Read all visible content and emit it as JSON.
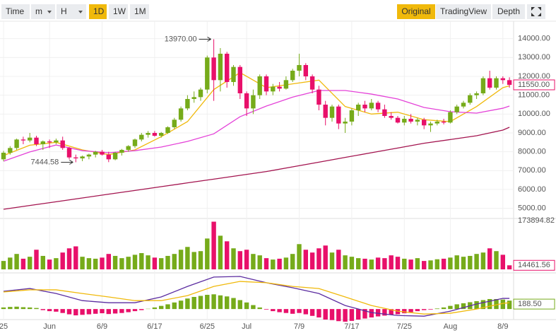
{
  "toolbar": {
    "left": [
      "Time",
      "m",
      "H",
      "1D",
      "1W",
      "1M"
    ],
    "right": [
      "Original",
      "TradingView",
      "Depth"
    ],
    "selected": {
      "left": 3,
      "right": 0
    }
  },
  "chart_data": {
    "type": "candlestick",
    "categories": [
      "25",
      null,
      null,
      null,
      null,
      null,
      null,
      "Jun",
      null,
      null,
      null,
      null,
      null,
      null,
      null,
      "6/9",
      null,
      null,
      null,
      null,
      null,
      null,
      null,
      "6/17",
      null,
      null,
      null,
      null,
      null,
      null,
      null,
      "6/25",
      null,
      null,
      null,
      null,
      null,
      "Jul",
      null,
      null,
      null,
      null,
      null,
      null,
      null,
      "7/9",
      null,
      null,
      null,
      null,
      null,
      null,
      null,
      "7/17",
      null,
      null,
      null,
      null,
      null,
      null,
      null,
      "7/25",
      null,
      null,
      null,
      null,
      null,
      null,
      "Aug",
      null,
      null,
      null,
      null,
      null,
      null,
      null,
      "8/9",
      null
    ],
    "candles": [
      [
        7600,
        8050,
        7500,
        7950
      ],
      [
        7950,
        8300,
        7850,
        8200
      ],
      [
        8200,
        8700,
        8100,
        8650
      ],
      [
        8650,
        8800,
        8400,
        8600
      ],
      [
        8600,
        9000,
        8500,
        8750
      ],
      [
        8750,
        8850,
        8300,
        8400
      ],
      [
        8400,
        8600,
        8100,
        8550
      ],
      [
        8550,
        8650,
        8200,
        8500
      ],
      [
        8500,
        8700,
        8400,
        8600
      ],
      [
        8600,
        8800,
        8100,
        8200
      ],
      [
        8200,
        8250,
        7600,
        7700
      ],
      [
        7700,
        7850,
        7444.58,
        7650
      ],
      [
        7650,
        7800,
        7500,
        7750
      ],
      [
        7750,
        7900,
        7600,
        7850
      ],
      [
        7850,
        8050,
        7700,
        8000
      ],
      [
        8000,
        8100,
        7800,
        7850
      ],
      [
        7850,
        8000,
        7450,
        7600
      ],
      [
        7600,
        8000,
        7550,
        7950
      ],
      [
        7950,
        8150,
        7800,
        8100
      ],
      [
        8100,
        8350,
        8000,
        8300
      ],
      [
        8300,
        8700,
        8200,
        8650
      ],
      [
        8650,
        9000,
        8550,
        8900
      ],
      [
        8900,
        9100,
        8750,
        9000
      ],
      [
        9000,
        9100,
        8800,
        8850
      ],
      [
        8850,
        9050,
        8750,
        9000
      ],
      [
        9000,
        9350,
        8950,
        9300
      ],
      [
        9300,
        9800,
        9200,
        9700
      ],
      [
        9700,
        10400,
        9600,
        10300
      ],
      [
        10300,
        11000,
        10200,
        10800
      ],
      [
        10800,
        11200,
        10600,
        10900
      ],
      [
        10900,
        11400,
        10700,
        11300
      ],
      [
        11300,
        13100,
        11100,
        13000
      ],
      [
        13000,
        13970,
        10700,
        11800
      ],
      [
        11800,
        13500,
        11200,
        13200
      ],
      [
        13200,
        13300,
        11400,
        11700
      ],
      [
        11700,
        12600,
        11500,
        12500
      ],
      [
        12500,
        12600,
        10800,
        11100
      ],
      [
        11100,
        11200,
        9900,
        10300
      ],
      [
        10300,
        11300,
        10000,
        11000
      ],
      [
        11000,
        12100,
        10800,
        12000
      ],
      [
        12000,
        12100,
        11000,
        11200
      ],
      [
        11200,
        11600,
        11000,
        11450
      ],
      [
        11450,
        11700,
        11200,
        11350
      ],
      [
        11350,
        12000,
        11300,
        11800
      ],
      [
        11800,
        12400,
        11700,
        12300
      ],
      [
        12300,
        13200,
        12000,
        12600
      ],
      [
        12600,
        12700,
        11800,
        12000
      ],
      [
        12000,
        12100,
        11100,
        11300
      ],
      [
        11300,
        11500,
        10200,
        10500
      ],
      [
        10500,
        10700,
        9400,
        9800
      ],
      [
        9800,
        10500,
        9600,
        10400
      ],
      [
        10400,
        10500,
        9200,
        9500
      ],
      [
        9500,
        9800,
        9000,
        9600
      ],
      [
        9600,
        10300,
        9400,
        10200
      ],
      [
        10200,
        10600,
        9900,
        10500
      ],
      [
        10500,
        10700,
        10100,
        10300
      ],
      [
        10300,
        10800,
        10200,
        10600
      ],
      [
        10600,
        10700,
        10100,
        10250
      ],
      [
        10250,
        10500,
        9800,
        9900
      ],
      [
        9900,
        10100,
        9700,
        9800
      ],
      [
        9800,
        9900,
        9500,
        9550
      ],
      [
        9550,
        9900,
        9400,
        9750
      ],
      [
        9750,
        10000,
        9500,
        9600
      ],
      [
        9600,
        9800,
        9400,
        9700
      ],
      [
        9700,
        9800,
        9200,
        9400
      ],
      [
        9400,
        9600,
        9050,
        9500
      ],
      [
        9500,
        9700,
        9400,
        9600
      ],
      [
        9600,
        9750,
        9450,
        9550
      ],
      [
        9550,
        10200,
        9500,
        10100
      ],
      [
        10100,
        10500,
        10000,
        10400
      ],
      [
        10400,
        10700,
        10300,
        10600
      ],
      [
        10600,
        11100,
        10500,
        11000
      ],
      [
        11000,
        11200,
        10800,
        11100
      ],
      [
        11100,
        12000,
        11000,
        11900
      ],
      [
        11900,
        12300,
        11300,
        11400
      ],
      [
        11400,
        12000,
        11300,
        11900
      ],
      [
        11900,
        12000,
        11600,
        11800
      ],
      [
        11800,
        11950,
        11400,
        11550
      ]
    ],
    "up_color": "#76ab1a",
    "down_color": "#e8106a",
    "ylim": [
      4500,
      15000
    ],
    "yticks": [
      {
        "value": 14000,
        "label": "14000.00"
      },
      {
        "value": 13000,
        "label": "13000.00"
      },
      {
        "value": 12000,
        "label": "12000.00"
      },
      {
        "value": 11000,
        "label": "11000.00"
      },
      {
        "value": 10000,
        "label": "10000.00"
      },
      {
        "value": 9000,
        "label": "9000.00"
      },
      {
        "value": 8000,
        "label": "8000.00"
      },
      {
        "value": 7000,
        "label": "7000.00"
      },
      {
        "value": 6000,
        "label": "6000.00"
      },
      {
        "value": 5000,
        "label": "5000.00"
      }
    ],
    "grid": true,
    "line_x": [
      0,
      4,
      8,
      12,
      16,
      20,
      24,
      28,
      32,
      36,
      40,
      44,
      48,
      52,
      56,
      60,
      64,
      68,
      72,
      76,
      77
    ],
    "ma": [
      {
        "color": "#f0b90b",
        "values": [
          7800,
          8350,
          8500,
          8100,
          7850,
          8100,
          8800,
          9600,
          11300,
          12200,
          11400,
          11600,
          11800,
          10400,
          10000,
          10100,
          9700,
          9600,
          10400,
          11400,
          11500
        ]
      },
      {
        "color": "#e442d8",
        "values": [
          7500,
          7990,
          8360,
          8060,
          7950,
          8060,
          8250,
          8550,
          8950,
          9860,
          10425,
          10900,
          11250,
          11250,
          11060,
          10800,
          10350,
          10125,
          10050,
          10310,
          10425
        ]
      },
      {
        "color": "#a3144f",
        "values": [
          4950,
          5150,
          5350,
          5550,
          5750,
          5950,
          6150,
          6350,
          6550,
          6750,
          6950,
          7200,
          7450,
          7700,
          7950,
          8200,
          8450,
          8650,
          8850,
          9150,
          9300
        ]
      }
    ],
    "volumes": [
      30000,
      42000,
      55000,
      38000,
      45000,
      70000,
      48000,
      35000,
      40000,
      60000,
      75000,
      82000,
      45000,
      40000,
      38000,
      42000,
      55000,
      48000,
      40000,
      45000,
      52000,
      58000,
      50000,
      42000,
      40000,
      48000,
      55000,
      70000,
      80000,
      62000,
      65000,
      110000,
      170000,
      120000,
      100000,
      75000,
      65000,
      70000,
      55000,
      50000,
      40000,
      35000,
      38000,
      42000,
      55000,
      90000,
      70000,
      60000,
      75000,
      85000,
      60000,
      70000,
      50000,
      45000,
      40000,
      38000,
      35000,
      42000,
      40000,
      50000,
      45000,
      38000,
      35000,
      40000,
      30000,
      32000,
      36000,
      38000,
      42000,
      50000,
      45000,
      48000,
      55000,
      60000,
      75000,
      65000,
      52000,
      14461.56
    ],
    "vol_ylim": [
      0,
      173894.82
    ],
    "vol_ticks": [
      {
        "value": 173894.82,
        "label": "173894.82"
      }
    ],
    "macd_hist": [
      60,
      80,
      90,
      70,
      60,
      40,
      -40,
      -80,
      -100,
      -150,
      -200,
      -240,
      -220,
      -200,
      -180,
      -160,
      -190,
      -170,
      -150,
      -120,
      -80,
      -40,
      10,
      60,
      120,
      180,
      250,
      320,
      400,
      460,
      500,
      540,
      560,
      520,
      480,
      420,
      340,
      250,
      150,
      60,
      -20,
      -80,
      -120,
      -150,
      -180,
      -150,
      -200,
      -260,
      -320,
      -400,
      -420,
      -460,
      -480,
      -450,
      -400,
      -360,
      -320,
      -280,
      -250,
      -220,
      -200,
      -160,
      -120,
      -80,
      -40,
      -20,
      20,
      60,
      120,
      180,
      220,
      260,
      300,
      340,
      380,
      380,
      360,
      320
    ],
    "macd_ylim": [
      -400,
      1320
    ],
    "macd_lines": [
      {
        "color": "#5b2ca0",
        "values": [
          675,
          780,
          590,
          320,
          240,
          240,
          460,
          860,
          1215,
          1240,
          1000,
          810,
          590,
          135,
          -135,
          -245,
          -270,
          -80,
          190,
          405,
          405
        ]
      },
      {
        "color": "#f0b90b",
        "values": [
          650,
          730,
          730,
          590,
          460,
          320,
          320,
          510,
          860,
          1050,
          1000,
          860,
          780,
          460,
          135,
          -80,
          -190,
          -160,
          0,
          215,
          240
        ]
      }
    ],
    "badges": [
      {
        "pane": "price",
        "value": 11550,
        "label": "11550.00",
        "color": "#e8106a"
      },
      {
        "pane": "volume",
        "value": 14461.56,
        "label": "14461.56",
        "color": "#e8106a"
      },
      {
        "pane": "macd",
        "value": 188.5,
        "label": "188.50",
        "color": "#76ab1a"
      }
    ],
    "annotations": [
      {
        "value": 13970,
        "label": "13970.00"
      },
      {
        "value": 7444.58,
        "label": "7444.58"
      }
    ]
  }
}
